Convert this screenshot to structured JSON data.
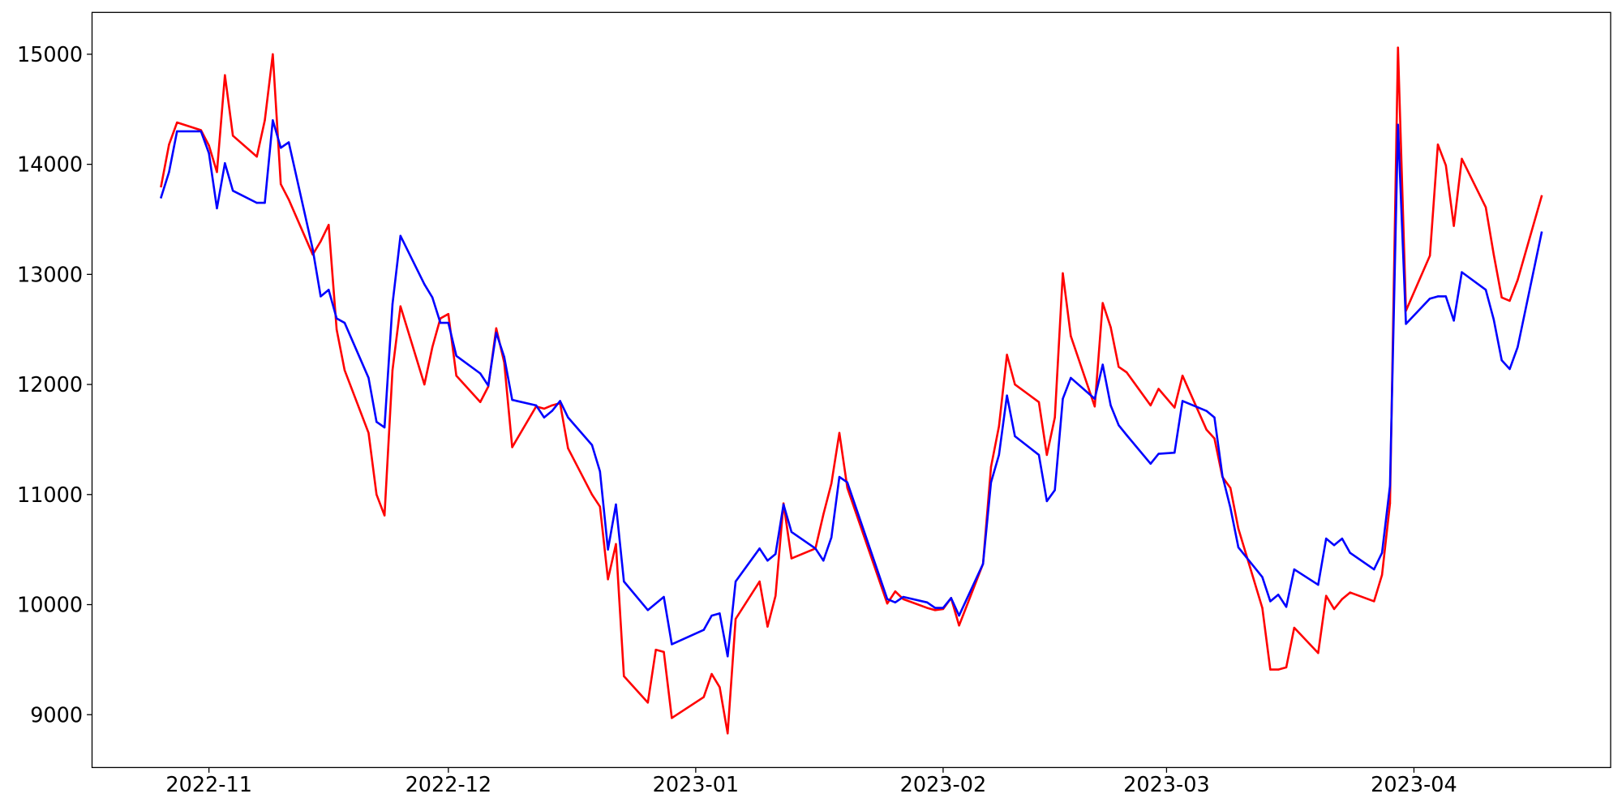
{
  "chart_data": {
    "type": "line",
    "x": [
      "2022-10-26",
      "2022-10-27",
      "2022-10-28",
      "2022-10-31",
      "2022-11-01",
      "2022-11-02",
      "2022-11-03",
      "2022-11-04",
      "2022-11-07",
      "2022-11-08",
      "2022-11-09",
      "2022-11-10",
      "2022-11-11",
      "2022-11-14",
      "2022-11-15",
      "2022-11-16",
      "2022-11-17",
      "2022-11-18",
      "2022-11-21",
      "2022-11-22",
      "2022-11-23",
      "2022-11-24",
      "2022-11-25",
      "2022-11-28",
      "2022-11-29",
      "2022-11-30",
      "2022-12-01",
      "2022-12-02",
      "2022-12-05",
      "2022-12-06",
      "2022-12-07",
      "2022-12-08",
      "2022-12-09",
      "2022-12-12",
      "2022-12-13",
      "2022-12-14",
      "2022-12-15",
      "2022-12-16",
      "2022-12-19",
      "2022-12-20",
      "2022-12-21",
      "2022-12-22",
      "2022-12-23",
      "2022-12-26",
      "2022-12-27",
      "2022-12-28",
      "2022-12-29",
      "2023-01-02",
      "2023-01-03",
      "2023-01-04",
      "2023-01-05",
      "2023-01-06",
      "2023-01-09",
      "2023-01-10",
      "2023-01-11",
      "2023-01-12",
      "2023-01-13",
      "2023-01-16",
      "2023-01-17",
      "2023-01-18",
      "2023-01-19",
      "2023-01-20",
      "2023-01-25",
      "2023-01-26",
      "2023-01-27",
      "2023-01-30",
      "2023-01-31",
      "2023-02-01",
      "2023-02-02",
      "2023-02-03",
      "2023-02-06",
      "2023-02-07",
      "2023-02-08",
      "2023-02-09",
      "2023-02-10",
      "2023-02-13",
      "2023-02-14",
      "2023-02-15",
      "2023-02-16",
      "2023-02-17",
      "2023-02-20",
      "2023-02-21",
      "2023-02-22",
      "2023-02-23",
      "2023-02-24",
      "2023-02-27",
      "2023-02-28",
      "2023-03-02",
      "2023-03-03",
      "2023-03-06",
      "2023-03-07",
      "2023-03-08",
      "2023-03-09",
      "2023-03-10",
      "2023-03-13",
      "2023-03-14",
      "2023-03-15",
      "2023-03-16",
      "2023-03-17",
      "2023-03-20",
      "2023-03-21",
      "2023-03-22",
      "2023-03-23",
      "2023-03-24",
      "2023-03-27",
      "2023-03-28",
      "2023-03-29",
      "2023-03-30",
      "2023-03-31",
      "2023-04-03",
      "2023-04-04",
      "2023-04-05",
      "2023-04-06",
      "2023-04-07",
      "2023-04-10",
      "2023-04-11",
      "2023-04-12",
      "2023-04-13",
      "2023-04-14",
      "2023-04-17"
    ],
    "series": [
      {
        "color": "#ff0000",
        "values": [
          13800,
          14180,
          14380,
          14310,
          14170,
          13930,
          14810,
          14260,
          14070,
          14400,
          15000,
          13820,
          13680,
          13180,
          13300,
          13450,
          12500,
          12130,
          11560,
          11000,
          10810,
          12130,
          12710,
          12000,
          12340,
          12600,
          12640,
          12080,
          11840,
          11980,
          12510,
          12200,
          11430,
          11800,
          11780,
          11810,
          11830,
          11420,
          11000,
          10890,
          10230,
          10550,
          9350,
          9110,
          9590,
          9570,
          8970,
          9160,
          9370,
          9250,
          8830,
          9870,
          10210,
          9800,
          10080,
          10920,
          10420,
          10510,
          10820,
          11100,
          11560,
          11060,
          10010,
          10120,
          10050,
          9970,
          9950,
          9960,
          10060,
          9810,
          10370,
          11250,
          11620,
          12270,
          12000,
          11840,
          11360,
          11700,
          13010,
          12440,
          11800,
          12740,
          12520,
          12160,
          12110,
          11810,
          11960,
          11790,
          12080,
          11590,
          11510,
          11160,
          11060,
          10690,
          9970,
          9410,
          9410,
          9430,
          9790,
          9560,
          10080,
          9960,
          10050,
          10110,
          10030,
          10270,
          10920,
          15060,
          12670,
          13170,
          14180,
          13990,
          13440,
          14050,
          13610,
          13180,
          12790,
          12760,
          12950,
          13710
        ]
      },
      {
        "color": "#0000ff",
        "values": [
          13700,
          13930,
          14300,
          14300,
          14100,
          13600,
          14010,
          13760,
          13650,
          13650,
          14400,
          14150,
          14200,
          13230,
          12800,
          12860,
          12600,
          12560,
          12060,
          11660,
          11610,
          12730,
          13350,
          12910,
          12790,
          12560,
          12560,
          12260,
          12100,
          11990,
          12470,
          12250,
          11860,
          11810,
          11700,
          11760,
          11850,
          11700,
          11450,
          11210,
          10500,
          10910,
          10210,
          9950,
          10010,
          10070,
          9640,
          9770,
          9900,
          9920,
          9530,
          10210,
          10510,
          10400,
          10460,
          10910,
          10660,
          10510,
          10400,
          10610,
          11160,
          11110,
          10050,
          10020,
          10070,
          10020,
          9970,
          9970,
          10060,
          9900,
          10370,
          11110,
          11360,
          11900,
          11530,
          11360,
          10940,
          11040,
          11870,
          12060,
          11870,
          12180,
          11810,
          11630,
          11540,
          11280,
          11370,
          11380,
          11850,
          11760,
          11700,
          11170,
          10880,
          10520,
          10250,
          10030,
          10090,
          9980,
          10320,
          10180,
          10600,
          10540,
          10600,
          10470,
          10320,
          10470,
          11080,
          14360,
          12550,
          12780,
          12800,
          12800,
          12580,
          13020,
          12860,
          12590,
          12220,
          12140,
          12340,
          13380
        ]
      }
    ],
    "xlim": [
      "2022-10-17T08:24",
      "2023-04-25T15:36"
    ],
    "ylim": [
      8520,
      15380
    ],
    "xticks": [
      {
        "value": "2022-11-01",
        "label": "2022-11"
      },
      {
        "value": "2022-12-01",
        "label": "2022-12"
      },
      {
        "value": "2023-01-01",
        "label": "2023-01"
      },
      {
        "value": "2023-02-01",
        "label": "2023-02"
      },
      {
        "value": "2023-03-01",
        "label": "2023-03"
      },
      {
        "value": "2023-04-01",
        "label": "2023-04"
      }
    ],
    "yticks": [
      {
        "value": 9000,
        "label": "9000"
      },
      {
        "value": 10000,
        "label": "10000"
      },
      {
        "value": 11000,
        "label": "11000"
      },
      {
        "value": 12000,
        "label": "12000"
      },
      {
        "value": 13000,
        "label": "13000"
      },
      {
        "value": 14000,
        "label": "14000"
      },
      {
        "value": 15000,
        "label": "15000"
      }
    ],
    "grid": false,
    "legend": "none"
  }
}
